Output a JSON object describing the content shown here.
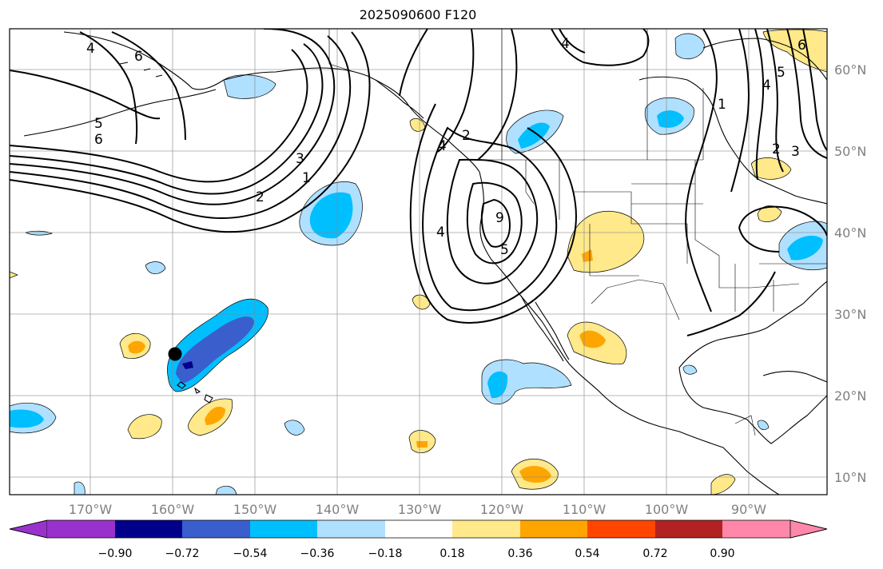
{
  "title": "2025090600 F120",
  "lon_ticks": [
    "170°W",
    "160°W",
    "150°W",
    "140°W",
    "130°W",
    "120°W",
    "110°W",
    "100°W",
    "90°W"
  ],
  "lat_ticks": [
    "60°N",
    "50°N",
    "40°N",
    "30°N",
    "20°N",
    "10°N"
  ],
  "colorbar": {
    "labels": [
      "−0.90",
      "−0.72",
      "−0.54",
      "−0.36",
      "−0.18",
      "0.18",
      "0.36",
      "0.54",
      "0.72",
      "0.90"
    ],
    "colors": [
      "#9932cc",
      "#00008b",
      "#3a5fcd",
      "#00bfff",
      "#b0e0ff",
      "#ffffff",
      "#ffe98a",
      "#ffa500",
      "#ff4500",
      "#b22222",
      "#ff88aa"
    ]
  },
  "contour_labels": [
    "6",
    "4",
    "5",
    "3",
    "2",
    "1",
    "6",
    "2",
    "4",
    "4",
    "9",
    "5",
    "4",
    "1",
    "6",
    "5",
    "4",
    "3",
    "2"
  ],
  "marker": "point-hawaii"
}
